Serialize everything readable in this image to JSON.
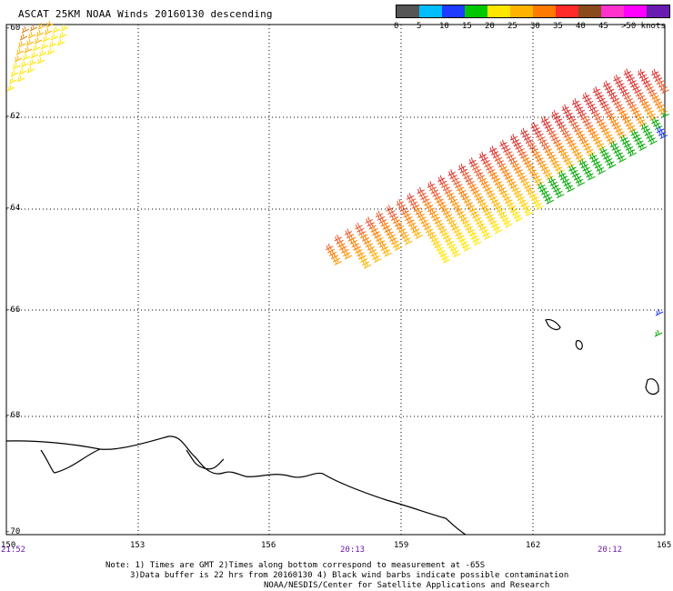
{
  "header": {
    "title": "ASCAT 25KM NOAA Winds 20160130 descending"
  },
  "legend": {
    "colors": [
      "#555555",
      "#00bfff",
      "#1e3cff",
      "#00c800",
      "#ffe600",
      "#ffb300",
      "#ff7a00",
      "#ff2a2a",
      "#8a4a1c",
      "#ff33cc",
      "#ff00ff",
      "#6a1cb0"
    ],
    "ticks": [
      "0",
      "5",
      "10",
      "15",
      "20",
      "25",
      "30",
      "35",
      "40",
      "45",
      ">50 knots"
    ]
  },
  "axes": {
    "lat_labels": [
      "-60",
      "-62",
      "-64",
      "-66",
      "-68",
      "-70"
    ],
    "lon_labels": [
      "150",
      "153",
      "156",
      "159",
      "162",
      "165"
    ],
    "time_labels": [
      "21:52",
      "20:13",
      "20:12"
    ]
  },
  "notes": {
    "line1": "Note: 1) Times are GMT 2)Times along bottom correspond to measurement at -65S",
    "line2": "3)Data buffer is 22 hrs from 20160130 4) Black wind barbs indicate possible contamination",
    "line3": "NOAA/NESDIS/Center for Satellite Applications and Research"
  },
  "map": {
    "grid": "dotted",
    "coastline_color": "#000000"
  }
}
